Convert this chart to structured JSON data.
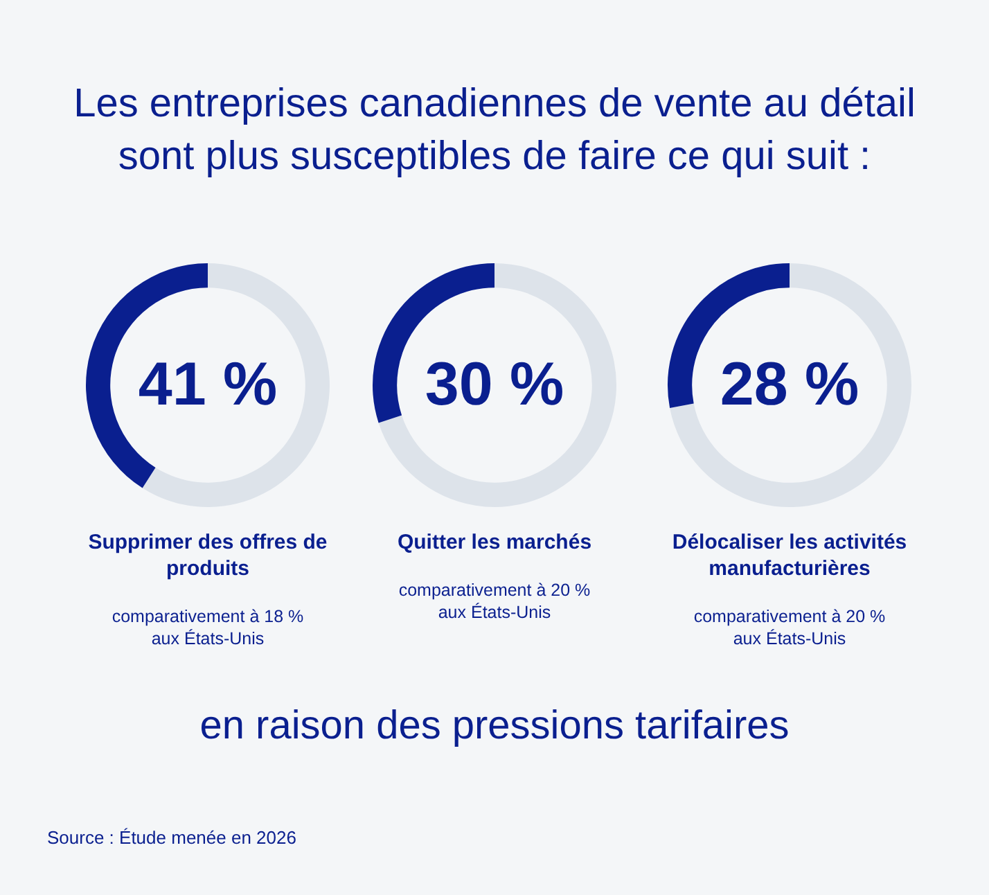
{
  "chart_data": [
    {
      "type": "other",
      "title": "Les entreprises canadiennes de vente au détail sont plus susceptibles de faire ce qui suit :",
      "annotations": [
        "en raison des pressions tarifaires",
        "Source : Étude menée en 2026"
      ]
    },
    {
      "type": "donut",
      "title": "Supprimer des offres de produits",
      "subtitle": "comparativement à 18 % aux États-Unis",
      "categories": [
        null,
        null
      ],
      "values": [
        59,
        41
      ],
      "colors": [
        "#dde3ea",
        "#0a1f8f"
      ],
      "value_labels": [
        null,
        "41 %"
      ]
    },
    {
      "type": "donut",
      "title": "Quitter les marchés",
      "subtitle": "comparativement à 20 % aux États-Unis",
      "categories": [
        null,
        null
      ],
      "values": [
        70,
        30
      ],
      "colors": [
        "#dde3ea",
        "#0a1f8f"
      ],
      "value_labels": [
        null,
        "30 %"
      ]
    },
    {
      "type": "donut",
      "title": "Délocaliser les activités manufacturières",
      "subtitle": "comparativement à 20 % aux États-Unis",
      "categories": [
        null,
        null
      ],
      "values": [
        72,
        28
      ],
      "colors": [
        "#dde3ea",
        "#0a1f8f"
      ],
      "value_labels": [
        null,
        "28 %"
      ]
    }
  ]
}
